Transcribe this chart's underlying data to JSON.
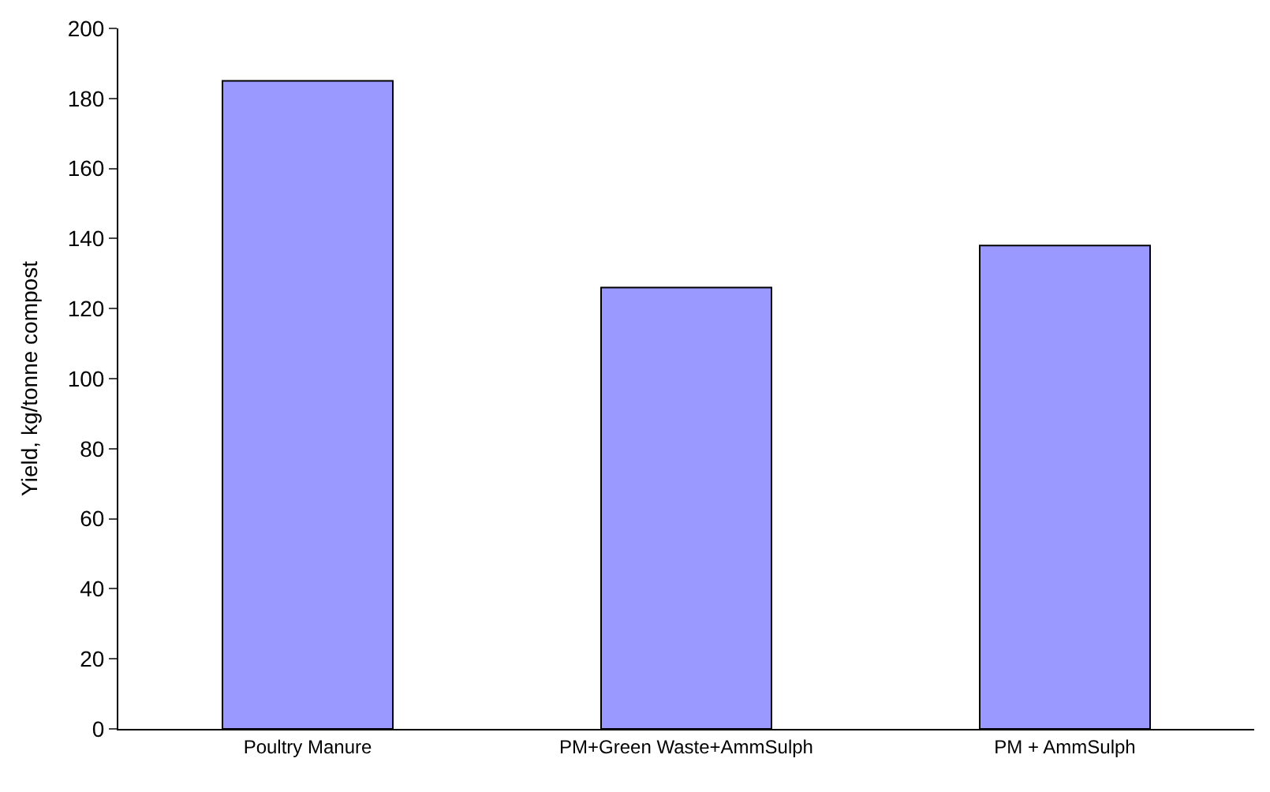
{
  "chart_data": {
    "type": "bar",
    "ylabel": "Yield, kg/tonne compost",
    "categories": [
      "Poultry Manure",
      "PM+Green Waste+AmmSulph",
      "PM + AmmSulph"
    ],
    "values": [
      185,
      126,
      138
    ],
    "color": "#9999ff",
    "ylim": [
      0,
      200
    ],
    "yticks": [
      0,
      20,
      40,
      60,
      80,
      100,
      120,
      140,
      160,
      180,
      200
    ]
  }
}
